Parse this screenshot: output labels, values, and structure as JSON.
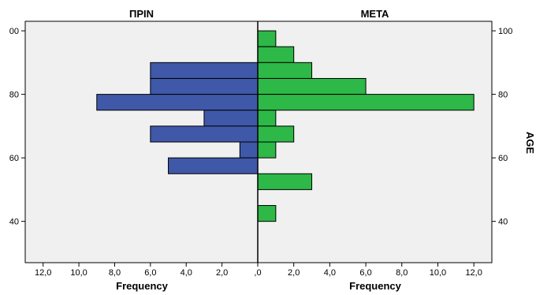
{
  "chart_data": {
    "type": "bar",
    "orientation": "horizontal",
    "layout": "back-to-back population pyramid",
    "panels": [
      {
        "title": "ΠΡΙΝ",
        "direction": "left",
        "color": "#3F58A8",
        "xlabel": "Frequency",
        "xlim": [
          0,
          13
        ],
        "x_ticks": [
          "12,0",
          "10,0",
          "8,0",
          "6,0",
          "4,0",
          "2,0",
          ",0"
        ],
        "bins": [
          {
            "age_from": 85,
            "age_to": 90,
            "value": 6
          },
          {
            "age_from": 80,
            "age_to": 85,
            "value": 6
          },
          {
            "age_from": 75,
            "age_to": 80,
            "value": 9
          },
          {
            "age_from": 70,
            "age_to": 75,
            "value": 3
          },
          {
            "age_from": 65,
            "age_to": 70,
            "value": 6
          },
          {
            "age_from": 60,
            "age_to": 65,
            "value": 1
          },
          {
            "age_from": 55,
            "age_to": 60,
            "value": 5
          }
        ]
      },
      {
        "title": "META",
        "direction": "right",
        "color": "#2DB847",
        "xlabel": "Frequency",
        "xlim": [
          0,
          13
        ],
        "x_ticks": [
          "2,0",
          "4,0",
          "6,0",
          "8,0",
          "10,0",
          "12,0"
        ],
        "bins": [
          {
            "age_from": 95,
            "age_to": 100,
            "value": 1
          },
          {
            "age_from": 90,
            "age_to": 95,
            "value": 2
          },
          {
            "age_from": 85,
            "age_to": 90,
            "value": 3
          },
          {
            "age_from": 80,
            "age_to": 85,
            "value": 6
          },
          {
            "age_from": 75,
            "age_to": 80,
            "value": 12
          },
          {
            "age_from": 70,
            "age_to": 75,
            "value": 1
          },
          {
            "age_from": 65,
            "age_to": 70,
            "value": 2
          },
          {
            "age_from": 60,
            "age_to": 65,
            "value": 1
          },
          {
            "age_from": 50,
            "age_to": 55,
            "value": 3
          },
          {
            "age_from": 40,
            "age_to": 45,
            "value": 1
          }
        ]
      }
    ],
    "y_axis": {
      "ylabel": "AGE",
      "ylim": [
        27,
        103
      ],
      "tick_values": [
        40,
        60,
        80,
        100
      ],
      "left_tick_values": [
        40,
        60,
        80,
        100
      ],
      "left_tick_labels": [
        "40",
        "60",
        "80",
        "00"
      ],
      "right_tick_values": [
        40,
        60,
        80,
        100
      ],
      "right_tick_labels": [
        "40",
        "60",
        "80",
        "100"
      ]
    },
    "grid": false,
    "background_color": "#F0F0F0"
  }
}
